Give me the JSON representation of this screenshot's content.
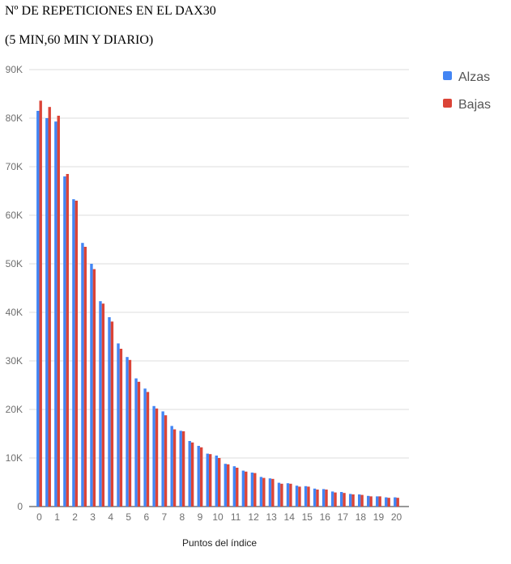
{
  "chart_data": {
    "type": "bar",
    "title": "Nº DE REPETICIONES EN EL DAX30",
    "subtitle": "(5 MIN,60 MIN Y DIARIO)",
    "xlabel": "Puntos del índice",
    "ylabel": "",
    "ylim": [
      0,
      90000
    ],
    "yticks": [
      0,
      10000,
      20000,
      30000,
      40000,
      50000,
      60000,
      70000,
      80000,
      90000
    ],
    "ytick_labels": [
      "0",
      "10K",
      "20K",
      "30K",
      "40K",
      "50K",
      "60K",
      "70K",
      "80K",
      "90K"
    ],
    "xtick_labels": [
      "0",
      "1",
      "2",
      "3",
      "4",
      "5",
      "6",
      "7",
      "8",
      "9",
      "10",
      "11",
      "12",
      "13",
      "14",
      "15",
      "16",
      "17",
      "18",
      "19",
      "20"
    ],
    "categories": [
      "0",
      "0.5",
      "1",
      "1.5",
      "2",
      "2.5",
      "3",
      "3.5",
      "4",
      "4.5",
      "5",
      "5.5",
      "6",
      "6.5",
      "7",
      "7.5",
      "8",
      "8.5",
      "9",
      "9.5",
      "10",
      "10.5",
      "11",
      "11.5",
      "12",
      "12.5",
      "13",
      "13.5",
      "14",
      "14.5",
      "15",
      "15.5",
      "16",
      "16.5",
      "17",
      "17.5",
      "18",
      "18.5",
      "19",
      "19.5",
      "20"
    ],
    "series": [
      {
        "name": "Alzas",
        "color": "#4285f4",
        "values": [
          81500,
          80000,
          79300,
          68000,
          63300,
          54300,
          50000,
          42300,
          39000,
          33600,
          30800,
          26400,
          24300,
          20700,
          19600,
          16600,
          15600,
          13500,
          12500,
          10900,
          10500,
          8800,
          8300,
          7400,
          7000,
          6100,
          5800,
          4900,
          4800,
          4300,
          4200,
          3700,
          3600,
          3100,
          3000,
          2600,
          2500,
          2200,
          2100,
          1900,
          1900
        ]
      },
      {
        "name": "Bajas",
        "color": "#db4437",
        "values": [
          83600,
          82300,
          80500,
          68500,
          63000,
          53500,
          48900,
          41800,
          38100,
          32500,
          30200,
          25700,
          23600,
          20200,
          18800,
          15900,
          15500,
          13200,
          12200,
          10800,
          10000,
          8700,
          8000,
          7200,
          6900,
          5900,
          5700,
          4700,
          4700,
          4100,
          4100,
          3500,
          3500,
          2900,
          2800,
          2500,
          2400,
          2100,
          2100,
          1800,
          1800
        ]
      }
    ],
    "grid": true,
    "legend": "right"
  }
}
